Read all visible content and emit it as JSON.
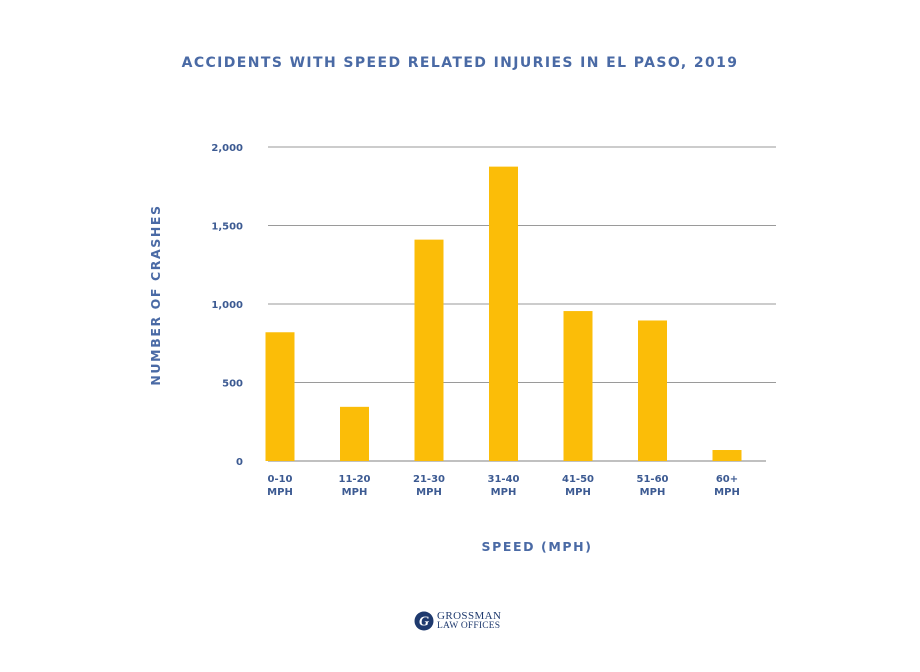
{
  "chart_data": {
    "type": "bar",
    "title": "ACCIDENTS WITH SPEED RELATED INJURIES IN EL PASO, 2019",
    "xlabel": "SPEED (MPH)",
    "ylabel": "NUMBER OF CRASHES",
    "categories": [
      [
        "0-10",
        "MPH"
      ],
      [
        "11-20",
        "MPH"
      ],
      [
        "21-30",
        "MPH"
      ],
      [
        "31-40",
        "MPH"
      ],
      [
        "41-50",
        "MPH"
      ],
      [
        "51-60",
        "MPH"
      ],
      [
        "60+",
        "MPH"
      ]
    ],
    "values": [
      820,
      345,
      1410,
      1875,
      955,
      895,
      70
    ],
    "ylim": [
      0,
      2000
    ],
    "yticks": [
      0,
      500,
      1000,
      1500,
      2000
    ],
    "ytick_labels": [
      "0",
      "500",
      "1,000",
      "1,500",
      "2,000"
    ],
    "grid": true,
    "bar_color": "#fbbd08",
    "grid_color": "#9a9a9a",
    "text_color": "#3c5a92"
  },
  "logo": {
    "line1": "GROSSMAN",
    "line2": "LAW OFFICES",
    "mark_letter": "G",
    "mark_color": "#1f3a6e"
  }
}
